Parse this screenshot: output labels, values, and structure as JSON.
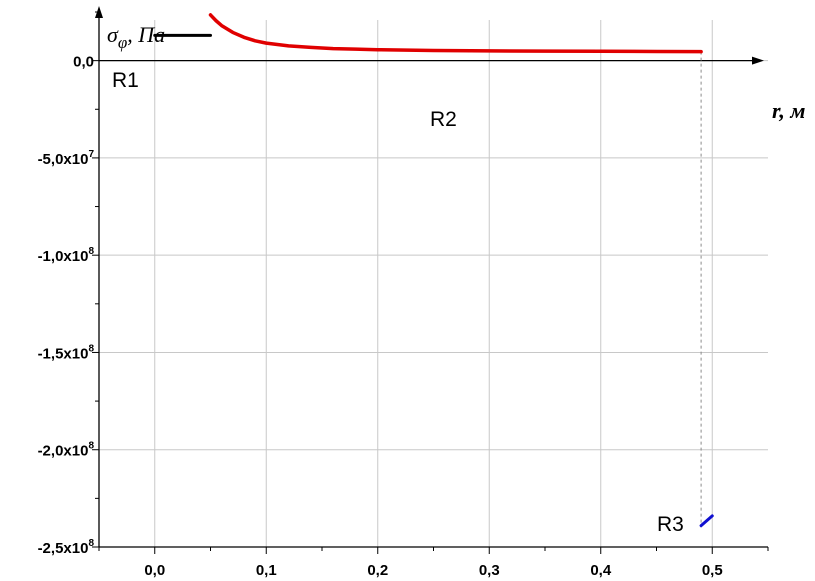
{
  "chart_data": {
    "type": "line",
    "ylabel": "σ",
    "ylabel_sub": "φ",
    "ylabel_units": ", Па",
    "xlabel": "r, м",
    "xlim": [
      -0.05,
      0.55
    ],
    "ylim": [
      -250000000,
      25000000
    ],
    "grid": true,
    "x_ticks": [
      {
        "value": 0.0,
        "label": "0,0"
      },
      {
        "value": 0.1,
        "label": "0,1"
      },
      {
        "value": 0.2,
        "label": "0,2"
      },
      {
        "value": 0.3,
        "label": "0,3"
      },
      {
        "value": 0.4,
        "label": "0,4"
      },
      {
        "value": 0.5,
        "label": "0,5"
      }
    ],
    "y_ticks": [
      {
        "value": 0,
        "base": "0,0",
        "exp": ""
      },
      {
        "value": -50000000,
        "base": "-5,0x10",
        "exp": "7"
      },
      {
        "value": -100000000,
        "base": "-1,0x10",
        "exp": "8"
      },
      {
        "value": -150000000,
        "base": "-1,5x10",
        "exp": "8"
      },
      {
        "value": -200000000,
        "base": "-2,0x10",
        "exp": "8"
      },
      {
        "value": -250000000,
        "base": "-2,5x10",
        "exp": "8"
      }
    ],
    "series": [
      {
        "name": "R1",
        "color": "#000000",
        "x": [
          0.0,
          0.05
        ],
        "y": [
          13000000,
          13000000
        ]
      },
      {
        "name": "R2",
        "color": "#e00000",
        "x": [
          0.05,
          0.055,
          0.06,
          0.07,
          0.08,
          0.09,
          0.1,
          0.12,
          0.14,
          0.16,
          0.18,
          0.2,
          0.25,
          0.3,
          0.35,
          0.4,
          0.45,
          0.49
        ],
        "y": [
          23500000,
          20500000,
          18000000,
          14500000,
          12000000,
          10200000,
          9000000,
          7600000,
          6800000,
          6200000,
          5900000,
          5600000,
          5200000,
          5000000,
          4900000,
          4800000,
          4700000,
          4600000
        ]
      },
      {
        "name": "R3",
        "color": "#1010d0",
        "x": [
          0.49,
          0.5
        ],
        "y": [
          -239000000,
          -234000000
        ]
      }
    ],
    "reference_line": {
      "x": 0.49
    },
    "annotations": [
      "R1",
      "R2",
      "R3"
    ]
  }
}
